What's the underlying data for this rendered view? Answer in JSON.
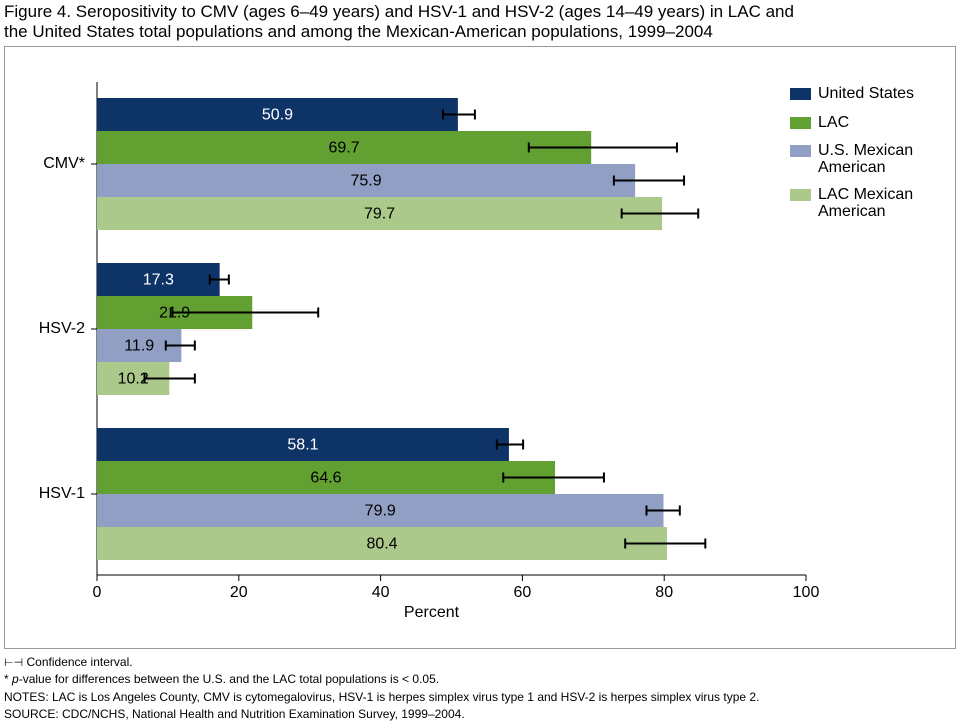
{
  "chart_data": {
    "type": "bar",
    "orientation": "horizontal",
    "title": "Figure 4. Seropositivity to CMV (ages 6–49 years) and HSV-1 and HSV-2 (ages 14–49 years) in LAC and the United States total populations and among the Mexican-American populations, 1999–2004",
    "categories": [
      "CMV*",
      "HSV-2",
      "HSV-1"
    ],
    "x_label": "Percent",
    "xlim": [
      0,
      100
    ],
    "xticks": [
      0,
      20,
      40,
      60,
      80,
      100
    ],
    "legend": "top-right",
    "series": [
      {
        "name": "United States",
        "color": "#0e3366",
        "label_color": "#ffffff",
        "values": [
          50.9,
          17.3,
          58.1
        ],
        "ci_low": [
          48.8,
          15.9,
          56.4
        ],
        "ci_high": [
          53.3,
          18.6,
          60.1
        ]
      },
      {
        "name": "LAC",
        "color": "#62a032",
        "label_color": "#000000",
        "values": [
          69.7,
          21.9,
          64.6
        ],
        "ci_low": [
          60.9,
          10.4,
          57.3
        ],
        "ci_high": [
          81.8,
          31.2,
          71.5
        ]
      },
      {
        "name": "U.S. Mexican American",
        "color": "#929fc4",
        "label_color": "#000000",
        "values": [
          75.9,
          11.9,
          79.9
        ],
        "ci_low": [
          72.9,
          9.7,
          77.5
        ],
        "ci_high": [
          82.8,
          13.8,
          82.2
        ]
      },
      {
        "name": "LAC Mexican American",
        "color": "#abc98a",
        "label_color": "#000000",
        "values": [
          79.7,
          10.2,
          80.4
        ],
        "ci_low": [
          74.0,
          6.7,
          74.5
        ],
        "ci_high": [
          84.8,
          13.8,
          85.8
        ]
      }
    ],
    "notes": {
      "ci": "Confidence interval.",
      "pvalue": {
        "prefix": "*",
        "italic": "p",
        "rest": "-value for differences between the U.S. and the LAC total populations is < 0.05."
      },
      "notes": "NOTES: LAC is Los Angeles County, CMV is cytomegalovirus, HSV-1 is herpes simplex virus type 1 and HSV-2 is herpes simplex virus type 2.",
      "source": "SOURCE: CDC/NCHS, National Health and Nutrition Examination Survey, 1999–2004."
    }
  }
}
